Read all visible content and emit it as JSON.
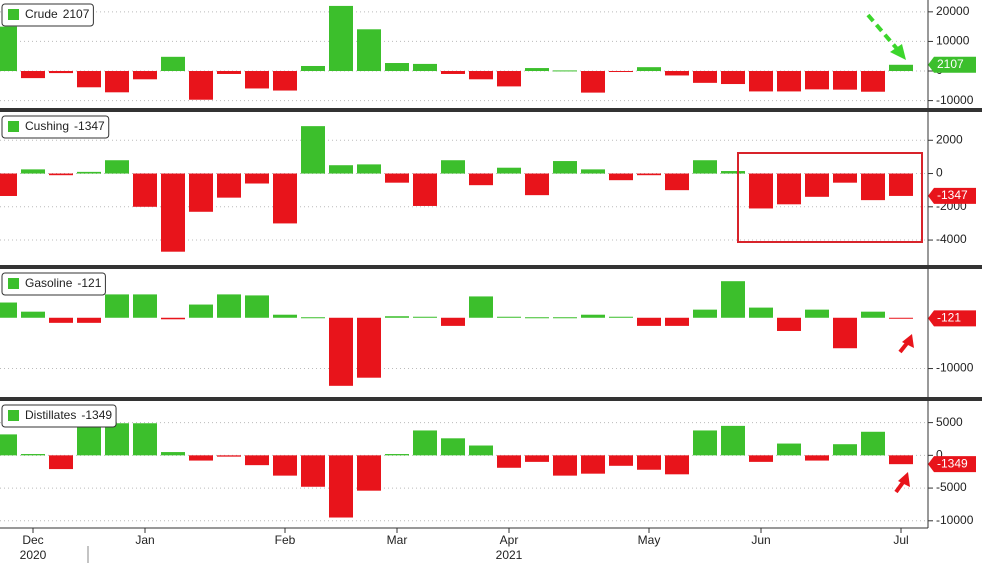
{
  "chart_data": [
    {
      "type": "bar",
      "series": [
        {
          "name": "Crude",
          "values": [
            15000,
            -2400,
            -700,
            -5500,
            -7200,
            -2800,
            4800,
            -9700,
            -1000,
            -5900,
            -6600,
            1700,
            22000,
            14100,
            2700,
            2400,
            -1000,
            -2800,
            -5200,
            1000,
            200,
            -7300,
            -300,
            1300,
            -1500,
            -4000,
            -4400,
            -6900,
            -6900,
            -6200,
            -6300,
            -7000,
            2107
          ]
        }
      ],
      "positive_color": "#3cbf2c",
      "negative_color": "#e8141b",
      "ylim": [
        -12500,
        24000
      ],
      "yticks": [
        -10000,
        0,
        10000,
        20000
      ],
      "grid": true
    },
    {
      "type": "bar",
      "series": [
        {
          "name": "Cushing",
          "values": [
            -1350,
            250,
            -100,
            100,
            800,
            -2000,
            -4700,
            -2300,
            -1450,
            -600,
            -3000,
            2850,
            500,
            550,
            -550,
            -1950,
            800,
            -700,
            350,
            -1300,
            750,
            250,
            -400,
            -100,
            -1000,
            800,
            150,
            -2100,
            -1850,
            -1400,
            -550,
            -1600,
            -1347
          ]
        }
      ],
      "positive_color": "#3cbf2c",
      "negative_color": "#e8141b",
      "ylim": [
        -5500,
        3700
      ],
      "yticks": [
        -4000,
        -2000,
        0,
        2000
      ],
      "grid": true
    },
    {
      "type": "bar",
      "series": [
        {
          "name": "Gasoline",
          "values": [
            3000,
            1200,
            -1000,
            -1000,
            4600,
            4600,
            -300,
            2600,
            4600,
            4400,
            600,
            100,
            -13400,
            -11800,
            300,
            200,
            -1600,
            4200,
            200,
            100,
            100,
            600,
            200,
            -1600,
            -1600,
            1600,
            7200,
            2000,
            -2600,
            1600,
            -6000,
            1200,
            -121
          ]
        }
      ],
      "positive_color": "#3cbf2c",
      "negative_color": "#e8141b",
      "ylim": [
        -15600,
        9600
      ],
      "yticks": [
        -10000
      ],
      "grid": true
    },
    {
      "type": "bar",
      "series": [
        {
          "name": "Distillates",
          "values": [
            3200,
            200,
            -2100,
            4900,
            4900,
            4900,
            500,
            -800,
            -200,
            -1500,
            -3100,
            -4800,
            -9500,
            -5400,
            200,
            3800,
            2600,
            1500,
            -1900,
            -1000,
            -3100,
            -2800,
            -1600,
            -2200,
            -2900,
            3800,
            4500,
            -1000,
            1800,
            -800,
            1700,
            3600,
            -1349
          ]
        }
      ],
      "positive_color": "#3cbf2c",
      "negative_color": "#e8141b",
      "ylim": [
        -11100,
        8300
      ],
      "yticks": [
        -10000,
        -5000,
        0,
        5000
      ],
      "grid": true,
      "categories": [
        null,
        "Dec",
        null,
        null,
        null,
        "Jan",
        null,
        null,
        null,
        null,
        "Feb",
        null,
        null,
        null,
        "Mar",
        null,
        null,
        null,
        "Apr",
        null,
        null,
        null,
        null,
        "May",
        null,
        null,
        null,
        "Jun",
        null,
        null,
        null,
        null,
        "Jul"
      ],
      "year_categories": [
        null,
        "2020",
        null,
        null,
        null,
        null,
        null,
        null,
        null,
        null,
        null,
        null,
        null,
        null,
        null,
        null,
        null,
        null,
        "2021",
        null,
        null,
        null,
        null,
        null,
        null,
        null,
        null,
        null,
        null,
        null,
        null,
        null,
        null
      ]
    }
  ]
}
